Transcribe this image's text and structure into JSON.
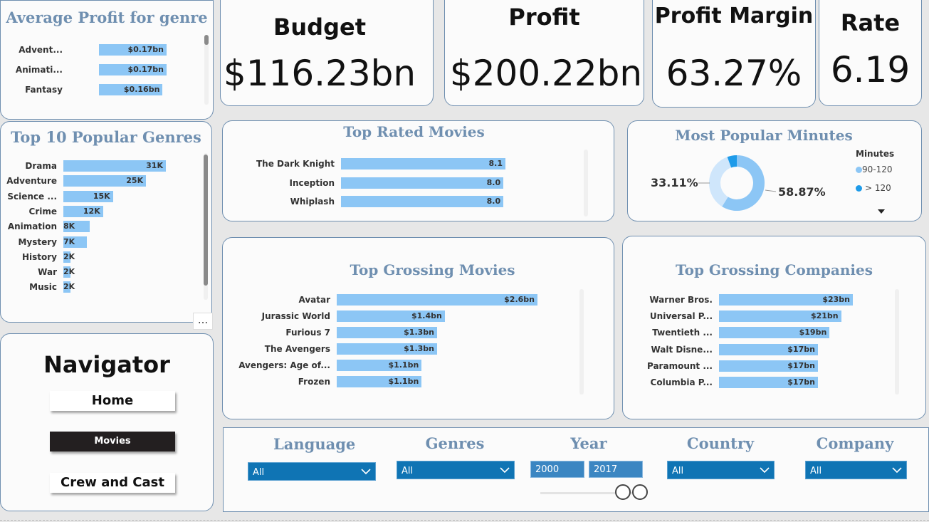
{
  "avg_profit": {
    "title": "Average Profit for genre",
    "rows": [
      {
        "label": "Advent...",
        "value": "$0.17bn",
        "amount": 0.17
      },
      {
        "label": "Animati...",
        "value": "$0.17bn",
        "amount": 0.17
      },
      {
        "label": "Fantasy",
        "value": "$0.16bn",
        "amount": 0.16
      }
    ]
  },
  "kpis": {
    "budget": {
      "label": "Budget",
      "value": "$116.23bn"
    },
    "profit": {
      "label": "Profit",
      "value": "$200.22bn"
    },
    "margin": {
      "label": "Profit Margin",
      "value": "63.27%"
    },
    "rate": {
      "label": "Rate",
      "value": "6.19"
    }
  },
  "popular_genres": {
    "title": "Top 10 Popular Genres",
    "rows": [
      {
        "label": "Drama",
        "value": "31K",
        "amount": 31
      },
      {
        "label": "Adventure",
        "value": "25K",
        "amount": 25
      },
      {
        "label": "Science ...",
        "value": "15K",
        "amount": 15
      },
      {
        "label": "Crime",
        "value": "12K",
        "amount": 12
      },
      {
        "label": "Animation",
        "value": "8K",
        "amount": 8
      },
      {
        "label": "Mystery",
        "value": "7K",
        "amount": 7
      },
      {
        "label": "History",
        "value": "2K",
        "amount": 2
      },
      {
        "label": "War",
        "value": "2K",
        "amount": 2
      },
      {
        "label": "Music",
        "value": "2K",
        "amount": 2
      }
    ]
  },
  "top_rated": {
    "title": "Top Rated Movies",
    "rows": [
      {
        "label": "The Dark Knight",
        "value": "8.1",
        "amount": 8.1
      },
      {
        "label": "Inception",
        "value": "8.0",
        "amount": 8.0
      },
      {
        "label": "Whiplash",
        "value": "8.0",
        "amount": 8.0
      }
    ]
  },
  "minutes": {
    "title": "Most Popular Minutes",
    "legend_title": "Minutes",
    "left_pct": "33.11%",
    "right_pct": "58.87%",
    "legend": [
      {
        "label": "90-120",
        "color": "#8cc6f5"
      },
      {
        "label": "> 120",
        "color": "#1e9be9"
      }
    ]
  },
  "grossing_movies": {
    "title": "Top Grossing Movies",
    "rows": [
      {
        "label": "Avatar",
        "value": "$2.6bn",
        "amount": 2.6
      },
      {
        "label": "Jurassic World",
        "value": "$1.4bn",
        "amount": 1.4
      },
      {
        "label": "Furious 7",
        "value": "$1.3bn",
        "amount": 1.3
      },
      {
        "label": "The Avengers",
        "value": "$1.3bn",
        "amount": 1.3
      },
      {
        "label": "Avengers: Age of...",
        "value": "$1.1bn",
        "amount": 1.1
      },
      {
        "label": "Frozen",
        "value": "$1.1bn",
        "amount": 1.1
      }
    ]
  },
  "grossing_companies": {
    "title": "Top Grossing Companies",
    "rows": [
      {
        "label": "Warner Bros.",
        "value": "$23bn",
        "amount": 23
      },
      {
        "label": "Universal P...",
        "value": "$21bn",
        "amount": 21
      },
      {
        "label": "Twentieth ...",
        "value": "$19bn",
        "amount": 19
      },
      {
        "label": "Walt Disne...",
        "value": "$17bn",
        "amount": 17
      },
      {
        "label": "Paramount ...",
        "value": "$17bn",
        "amount": 17
      },
      {
        "label": "Columbia P...",
        "value": "$17bn",
        "amount": 17
      }
    ]
  },
  "navigator": {
    "title": "Navigator",
    "home": "Home",
    "movies": "Movies",
    "crew": "Crew and Cast"
  },
  "slicers": {
    "language": {
      "label": "Language",
      "value": "All"
    },
    "genres": {
      "label": "Genres",
      "value": "All"
    },
    "year": {
      "label": "Year",
      "from": "2000",
      "to": "2017"
    },
    "country": {
      "label": "Country",
      "value": "All"
    },
    "company": {
      "label": "Company",
      "value": "All"
    }
  },
  "more_options": "..."
}
